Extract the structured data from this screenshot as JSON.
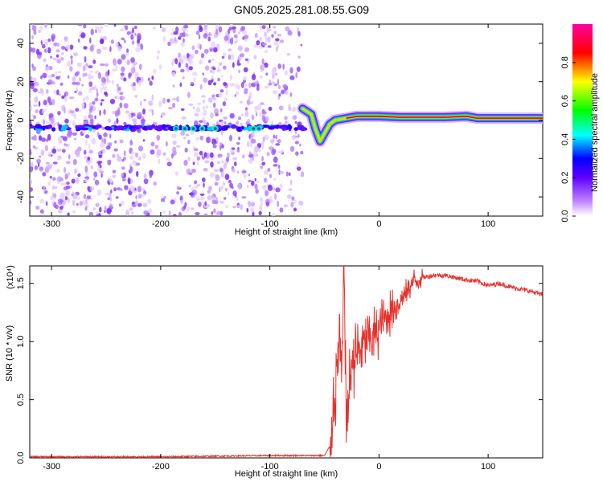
{
  "title": "GN05.2025.281.08.55.G09",
  "chart_data": [
    {
      "type": "heatmap",
      "xlabel": "Height of straight line (km)",
      "ylabel": "Frequency (Hz)",
      "xlim": [
        -320,
        150
      ],
      "ylim": [
        -50,
        50
      ],
      "xticks": [
        -300,
        -200,
        -100,
        0,
        100
      ],
      "yticks": [
        -40,
        -20,
        0,
        20,
        40
      ],
      "colorbar": {
        "label": "Normalized spectral amplitude",
        "range": [
          0,
          1
        ],
        "ticks": [
          "0.0",
          "0.2",
          "0.4",
          "0.6",
          "0.8"
        ],
        "colors": [
          "#ffffff",
          "#a020f0",
          "#0000ff",
          "#00ffff",
          "#00ff00",
          "#ffff00",
          "#ff0000",
          "#ff00a0"
        ]
      },
      "noise_region_x": [
        -320,
        -68
      ],
      "noise_line_frequency": -4,
      "ridge": {
        "x": [
          -70,
          -62,
          -58,
          -54,
          -50,
          -45,
          -40,
          -30,
          -20,
          -10,
          0,
          20,
          40,
          60,
          80,
          90,
          100,
          120,
          150
        ],
        "frequency": [
          6,
          3,
          -5,
          -11,
          -7,
          -2,
          0,
          1,
          2,
          2,
          2,
          1.5,
          1.5,
          1.5,
          2,
          1,
          1,
          1,
          1
        ]
      }
    },
    {
      "type": "line",
      "xlabel": "Height of straight line (km)",
      "ylabel": "SNR (10 * v/v)",
      "scale_label": "(x10⁴)",
      "xlim": [
        -320,
        150
      ],
      "ylim": [
        0,
        1.65
      ],
      "xticks": [
        -300,
        -200,
        -100,
        0,
        100
      ],
      "yticks": [
        "0.0",
        "0.5",
        "1.0",
        "1.5"
      ],
      "color": "#e8302b",
      "series": [
        {
          "x": [
            -320,
            -200,
            -100,
            -50,
            -45,
            -40,
            -36,
            -34,
            -32,
            -30,
            -25,
            -20,
            -10,
            0,
            10,
            20,
            30,
            40,
            50,
            60,
            70,
            80,
            90,
            95,
            100,
            110,
            120,
            130,
            140,
            150
          ],
          "values": [
            0.01,
            0.01,
            0.02,
            0.02,
            0.1,
            0.6,
            1.05,
            0.6,
            1.7,
            0.3,
            0.8,
            0.9,
            1.0,
            1.1,
            1.25,
            1.35,
            1.5,
            1.55,
            1.57,
            1.57,
            1.55,
            1.53,
            1.52,
            1.5,
            1.48,
            1.5,
            1.47,
            1.45,
            1.43,
            1.4
          ]
        }
      ]
    }
  ]
}
